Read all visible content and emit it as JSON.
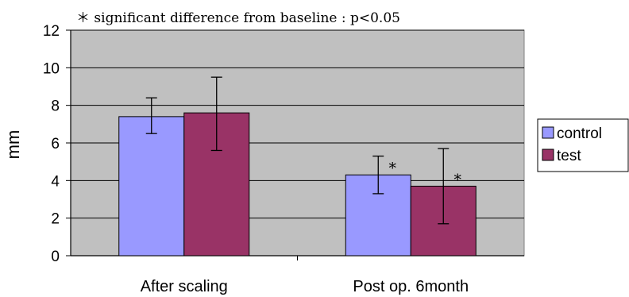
{
  "chart_data": {
    "type": "bar",
    "annotation": "＊ significant difference from baseline : p<0.05",
    "ylabel": "mm",
    "xlabel": "",
    "ylim": [
      0,
      12
    ],
    "yticks": [
      "0",
      "2",
      "4",
      "6",
      "8",
      "10",
      "12"
    ],
    "grid": true,
    "legend_position": "right",
    "categories": [
      "After scaling",
      "Post op. 6month"
    ],
    "series": [
      {
        "name": "control",
        "color": "#9999ff",
        "values": [
          7.4,
          4.3
        ],
        "error": [
          [
            6.5,
            8.4
          ],
          [
            3.3,
            5.3
          ]
        ],
        "markers": [
          "",
          "*"
        ]
      },
      {
        "name": "test",
        "color": "#993366",
        "values": [
          7.6,
          3.7
        ],
        "error": [
          [
            5.6,
            9.5
          ],
          [
            1.7,
            5.7
          ]
        ],
        "markers": [
          "",
          "*"
        ]
      }
    ],
    "plot_background": "#c0c0c0"
  }
}
